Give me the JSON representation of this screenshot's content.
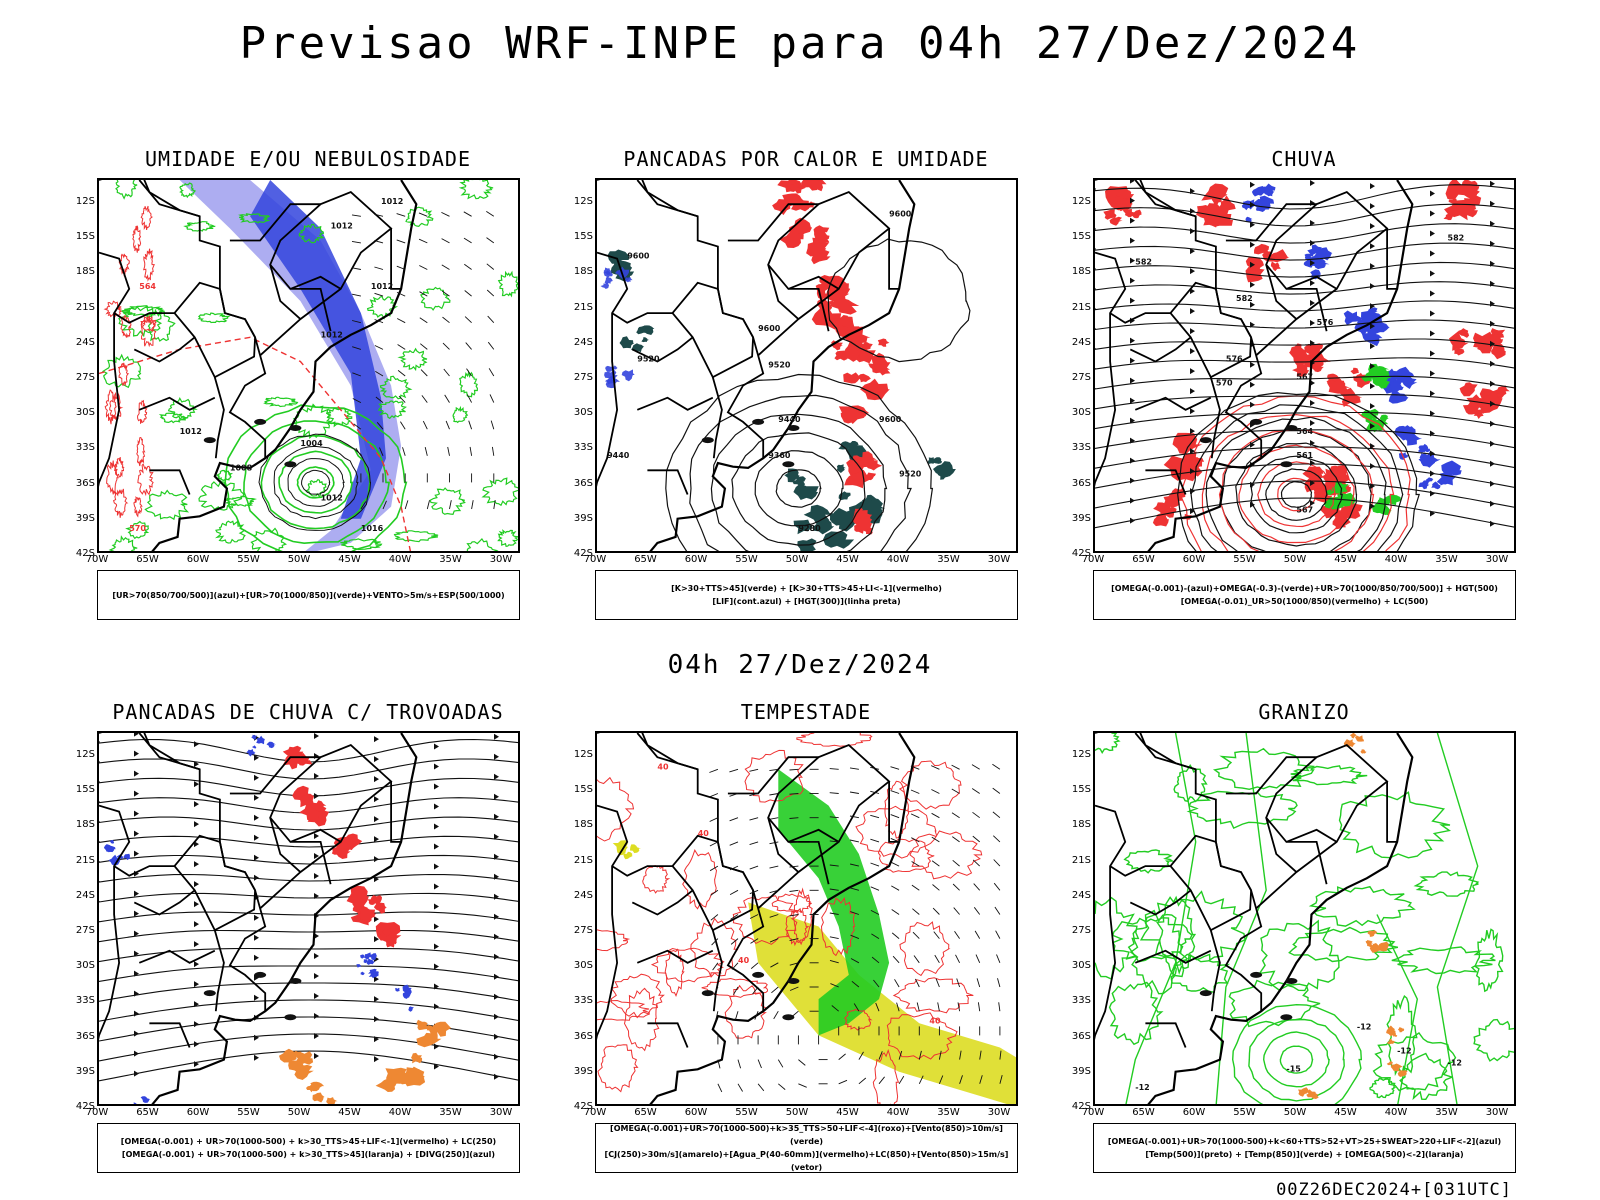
{
  "title": "Previsao WRF-INPE  para 04h 27/Dez/2024",
  "subtitle_date": "04h 27/Dez/2024",
  "footer": "00Z26DEC2024+[031UTC]",
  "axes": {
    "lat_labels": [
      "12S",
      "15S",
      "18S",
      "21S",
      "24S",
      "27S",
      "30S",
      "33S",
      "36S",
      "39S",
      "42S"
    ],
    "lon_labels": [
      "70W",
      "65W",
      "60W",
      "55W",
      "50W",
      "45W",
      "40W",
      "35W",
      "30W"
    ]
  },
  "panels": [
    {
      "title": "UMIDADE E/OU NEBULOSIDADE",
      "legend": [
        "[UR>70(850/700/500)](azul)+[UR>70(1000/850)](verde)+VENTO>5m/s+ESP(500/1000)"
      ],
      "contour_labels": [
        "1012",
        "1012",
        "1012",
        "1012",
        "1012",
        "1008",
        "1004",
        "1012",
        "1016",
        "570",
        "564"
      ]
    },
    {
      "title": "PANCADAS POR CALOR E UMIDADE",
      "legend": [
        "[K>30+TTS>45](verde) + [K>30+TTS>45+LI<-1](vermelho)",
        "[LIF](cont.azul) + [HGT(300)](linha preta)"
      ],
      "contour_labels": [
        "9600",
        "9600",
        "9600",
        "9520",
        "9520",
        "9440",
        "9440",
        "9360",
        "9280",
        "9600",
        "9520"
      ]
    },
    {
      "title": "CHUVA",
      "legend": [
        "[OMEGA(-0.001)-(azul)+OMEGA(-0.3)-(verde)+UR>70(1000/850/700/500)] + HGT(500)",
        "[OMEGA(-0.01)_UR>50(1000/850)(vermelho) + LC(500)"
      ],
      "contour_labels": [
        "582",
        "582",
        "582",
        "576",
        "576",
        "570",
        "567",
        "564",
        "561",
        "567"
      ]
    },
    {
      "title": "PANCADAS DE CHUVA C/ TROVOADAS",
      "legend": [
        "[OMEGA(-0.001) + UR>70(1000-500) + k>30_TTS>45+LIF<-1](vermelho) + LC(250)",
        "[OMEGA(-0.001) + UR>70(1000-500) + k>30_TTS>45](laranja) + [DIVG(250)](azul)"
      ],
      "contour_labels": []
    },
    {
      "title": "TEMPESTADE",
      "legend": [
        "[OMEGA(-0.001)+UR>70(1000-500)+k>35_TTS>50+LIF<-4](roxo)+[Vento(850)>10m/s](verde)",
        "[CJ(250)>30m/s](amarelo)+[Agua_P(40-60mm)](vermelho)+LC(850)+[Vento(850)>15m/s](vetor)"
      ],
      "contour_labels": [
        "40",
        "40",
        "40",
        "40"
      ]
    },
    {
      "title": "GRANIZO",
      "legend": [
        "[OMEGA(-0.001)+UR>70(1000-500)+k<60+TTS>52+VT>25+SWEAT>220+LIF<-2](azul)",
        "[Temp(500)](preto) + [Temp(850)](verde) + [OMEGA(500)<-2](laranja)"
      ],
      "contour_labels": [
        "-12",
        "-15",
        "-12",
        "-12",
        "-12"
      ]
    }
  ],
  "colors": {
    "blue": "#3344dd",
    "light_blue": "#9999ee",
    "green": "#22cc22",
    "red": "#ee3333",
    "dark_teal": "#1e4a4a",
    "yellow": "#dddd22",
    "orange": "#ee8833"
  }
}
